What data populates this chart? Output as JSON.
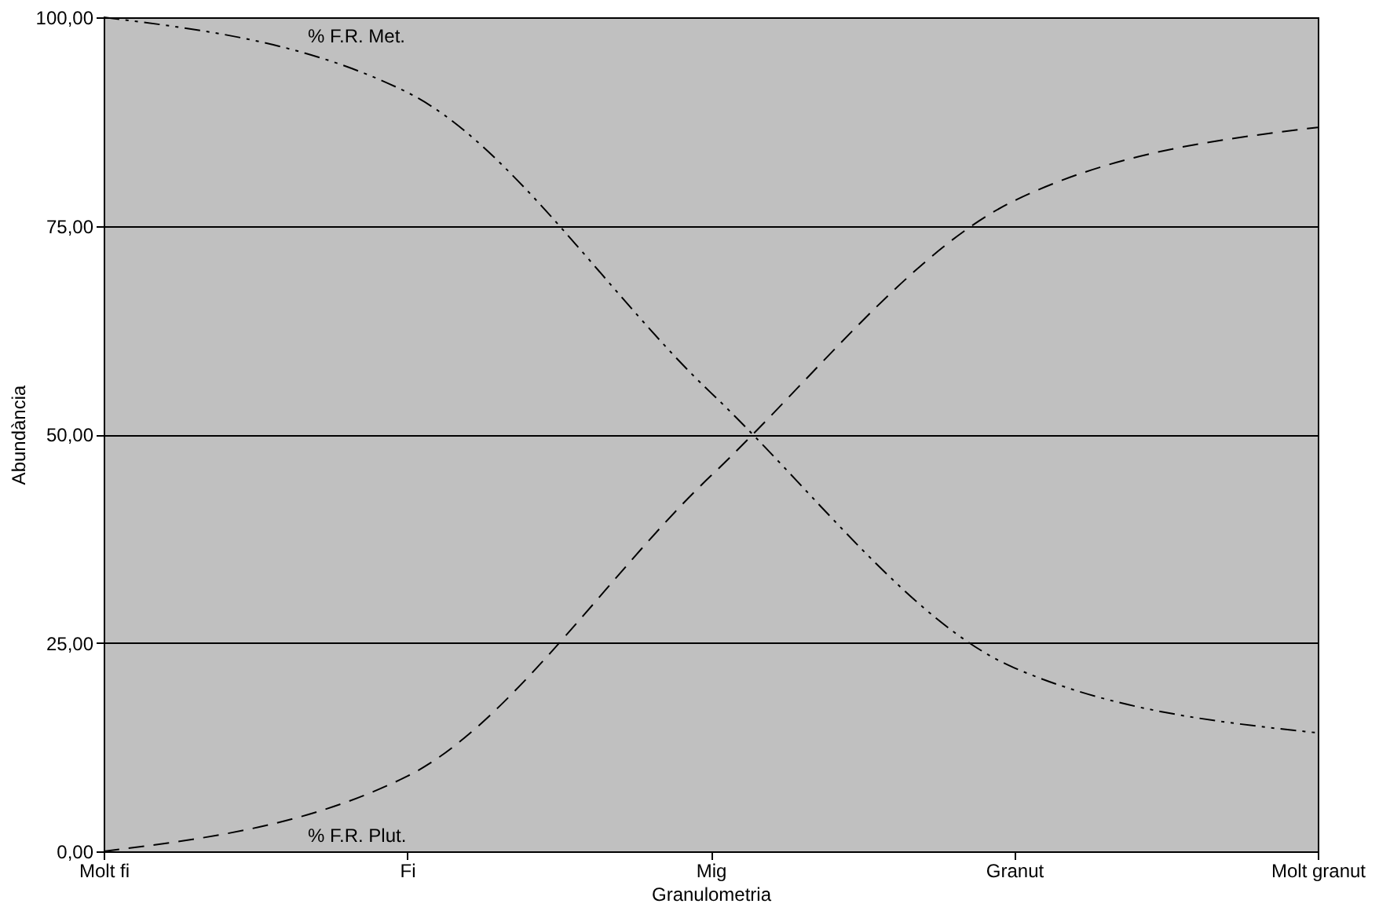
{
  "chart_data": {
    "type": "line",
    "xlabel": "Granulometria",
    "ylabel": "Abundància",
    "categories": [
      "Molt fi",
      "Fi",
      "Mig",
      "Granut",
      "Molt granut"
    ],
    "ylim": [
      0,
      100
    ],
    "yticks": [
      {
        "value": 0,
        "label": "0,00"
      },
      {
        "value": 25,
        "label": "25,00"
      },
      {
        "value": 50,
        "label": "50,00"
      },
      {
        "value": 75,
        "label": "75,00"
      },
      {
        "value": 100,
        "label": "100,00"
      }
    ],
    "grid": "y",
    "marker": "none",
    "series": [
      {
        "name": "% F.R. Met.",
        "color": "#000000",
        "line_style": "dashdot",
        "values": [
          100,
          91,
          55,
          22,
          14.2
        ]
      },
      {
        "name": "% F.R. Plut.",
        "color": "#000000",
        "line_style": "dashed",
        "values": [
          0,
          9,
          45,
          78,
          86.8
        ]
      }
    ]
  }
}
